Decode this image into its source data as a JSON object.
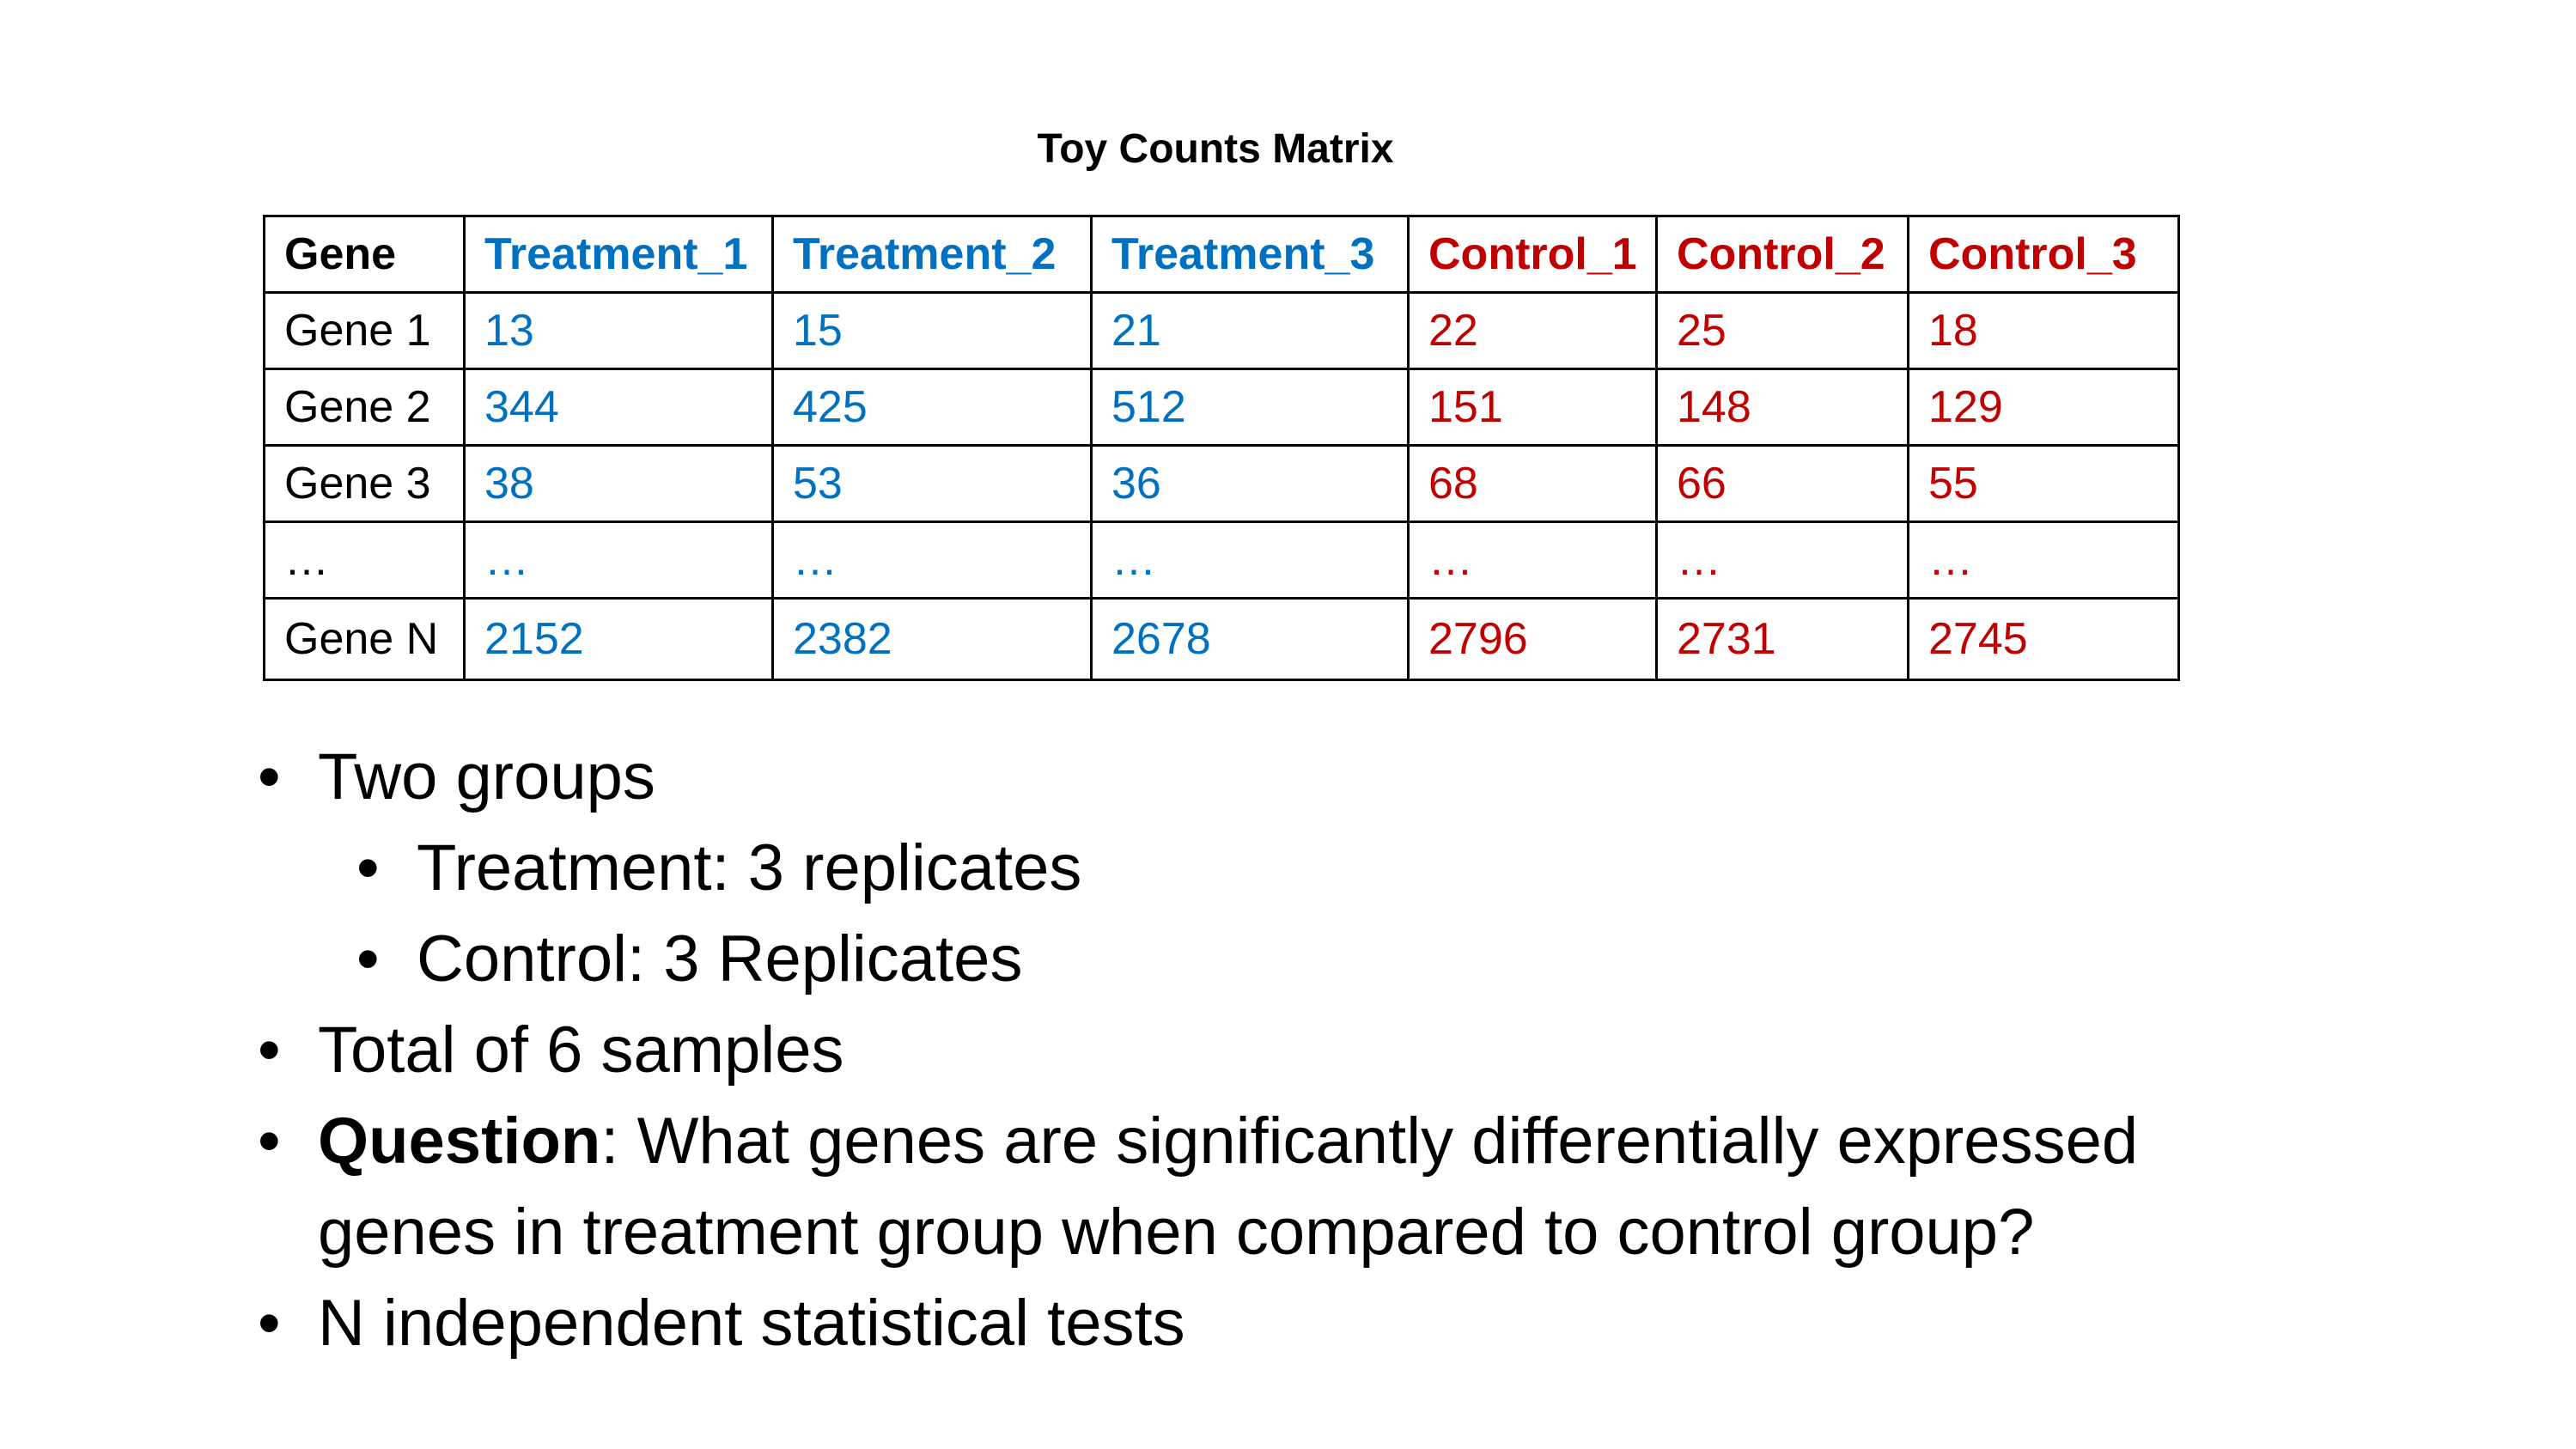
{
  "title": "Toy Counts Matrix",
  "colors": {
    "treatment": "#0070c0",
    "control": "#c00000",
    "gene": "#000000"
  },
  "table": {
    "headers": [
      "Gene",
      "Treatment_1",
      "Treatment_2",
      "Treatment_3",
      "Control_1",
      "Control_2",
      "Control_3"
    ],
    "rows": [
      [
        "Gene 1",
        "13",
        "15",
        "21",
        "22",
        "25",
        "18"
      ],
      [
        "Gene 2",
        "344",
        "425",
        "512",
        "151",
        "148",
        "129"
      ],
      [
        "Gene 3",
        "38",
        "53",
        "36",
        "68",
        "66",
        "55"
      ],
      [
        "…",
        "…",
        "…",
        "…",
        "…",
        "…",
        "…"
      ],
      [
        "Gene N",
        "2152",
        "2382",
        "2678",
        "2796",
        "2731",
        "2745"
      ]
    ]
  },
  "bullets": {
    "b1": "Two groups",
    "b1_sub1": "Treatment: 3 replicates",
    "b1_sub2": "Control: 3 Replicates",
    "b2": "Total of 6 samples",
    "b3_bold": "Question",
    "b3_rest": ": What genes are significantly differentially expressed genes in treatment group when compared to control group?",
    "b4": "N independent statistical tests"
  }
}
